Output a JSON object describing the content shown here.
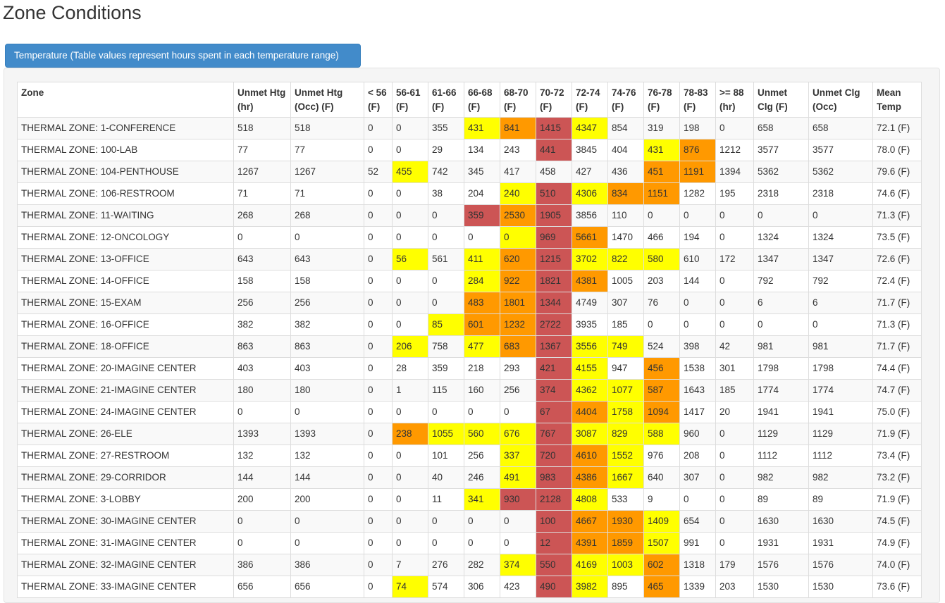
{
  "page_title": "Zone Conditions",
  "tab_label": "Temperature (Table values represent hours spent in each temperature range)",
  "colors": {
    "yellow": "#ffff00",
    "orange": "#ff9900",
    "red": "#cc5555",
    "accent": "#428bca"
  },
  "headers": [
    "Zone",
    "Unmet Htg (hr)",
    "Unmet Htg (Occ) (F)",
    "< 56 (F)",
    "56-61 (F)",
    "61-66 (F)",
    "66-68 (F)",
    "68-70 (F)",
    "70-72 (F)",
    "72-74 (F)",
    "74-76 (F)",
    "76-78 (F)",
    "78-83 (F)",
    ">= 88 (hr)",
    "Unmet Clg (F)",
    "Unmet Clg (Occ)",
    "Mean Temp"
  ],
  "rows": [
    {
      "cells": [
        "THERMAL ZONE: 1-CONFERENCE",
        "518",
        "518",
        "0",
        "0",
        "355",
        "431",
        "841",
        "1415",
        "4347",
        "854",
        "319",
        "198",
        "0",
        "658",
        "658",
        "72.1 (F)"
      ],
      "highlight": [
        "",
        "",
        "",
        "",
        "",
        "",
        "yellow",
        "orange",
        "red",
        "yellow",
        "",
        "",
        "",
        "",
        "",
        "",
        ""
      ]
    },
    {
      "cells": [
        "THERMAL ZONE: 100-LAB",
        "77",
        "77",
        "0",
        "0",
        "29",
        "134",
        "243",
        "441",
        "3845",
        "404",
        "431",
        "876",
        "1212",
        "3577",
        "3577",
        "78.0 (F)"
      ],
      "highlight": [
        "",
        "",
        "",
        "",
        "",
        "",
        "",
        "",
        "red",
        "",
        "",
        "yellow",
        "orange",
        "",
        "",
        "",
        ""
      ]
    },
    {
      "cells": [
        "THERMAL ZONE: 104-PENTHOUSE",
        "1267",
        "1267",
        "52",
        "455",
        "742",
        "345",
        "417",
        "458",
        "427",
        "436",
        "451",
        "1191",
        "1394",
        "5362",
        "5362",
        "79.6 (F)"
      ],
      "highlight": [
        "",
        "",
        "",
        "",
        "yellow",
        "",
        "",
        "",
        "",
        "",
        "",
        "orange",
        "orange",
        "",
        "",
        "",
        ""
      ]
    },
    {
      "cells": [
        "THERMAL ZONE: 106-RESTROOM",
        "71",
        "71",
        "0",
        "0",
        "38",
        "204",
        "240",
        "510",
        "4306",
        "834",
        "1151",
        "1282",
        "195",
        "2318",
        "2318",
        "74.6 (F)"
      ],
      "highlight": [
        "",
        "",
        "",
        "",
        "",
        "",
        "",
        "yellow",
        "red",
        "yellow",
        "orange",
        "orange",
        "",
        "",
        "",
        "",
        ""
      ]
    },
    {
      "cells": [
        "THERMAL ZONE: 11-WAITING",
        "268",
        "268",
        "0",
        "0",
        "0",
        "359",
        "2530",
        "1905",
        "3856",
        "110",
        "0",
        "0",
        "0",
        "0",
        "0",
        "71.3 (F)"
      ],
      "highlight": [
        "",
        "",
        "",
        "",
        "",
        "",
        "red",
        "orange",
        "red",
        "",
        "",
        "",
        "",
        "",
        "",
        "",
        ""
      ]
    },
    {
      "cells": [
        "THERMAL ZONE: 12-ONCOLOGY",
        "0",
        "0",
        "0",
        "0",
        "0",
        "0",
        "0",
        "969",
        "5661",
        "1470",
        "466",
        "194",
        "0",
        "1324",
        "1324",
        "73.5 (F)"
      ],
      "highlight": [
        "",
        "",
        "",
        "",
        "",
        "",
        "",
        "yellow",
        "red",
        "orange",
        "",
        "",
        "",
        "",
        "",
        "",
        ""
      ]
    },
    {
      "cells": [
        "THERMAL ZONE: 13-OFFICE",
        "643",
        "643",
        "0",
        "56",
        "561",
        "411",
        "620",
        "1215",
        "3702",
        "822",
        "580",
        "610",
        "172",
        "1347",
        "1347",
        "72.6 (F)"
      ],
      "highlight": [
        "",
        "",
        "",
        "",
        "yellow",
        "",
        "yellow",
        "orange",
        "red",
        "yellow",
        "yellow",
        "yellow",
        "",
        "",
        "",
        "",
        ""
      ]
    },
    {
      "cells": [
        "THERMAL ZONE: 14-OFFICE",
        "158",
        "158",
        "0",
        "0",
        "0",
        "284",
        "922",
        "1821",
        "4381",
        "1005",
        "203",
        "144",
        "0",
        "792",
        "792",
        "72.4 (F)"
      ],
      "highlight": [
        "",
        "",
        "",
        "",
        "",
        "",
        "yellow",
        "orange",
        "red",
        "orange",
        "",
        "",
        "",
        "",
        "",
        "",
        ""
      ]
    },
    {
      "cells": [
        "THERMAL ZONE: 15-EXAM",
        "256",
        "256",
        "0",
        "0",
        "0",
        "483",
        "1801",
        "1344",
        "4749",
        "307",
        "76",
        "0",
        "0",
        "6",
        "6",
        "71.7 (F)"
      ],
      "highlight": [
        "",
        "",
        "",
        "",
        "",
        "",
        "orange",
        "orange",
        "red",
        "",
        "",
        "",
        "",
        "",
        "",
        "",
        ""
      ]
    },
    {
      "cells": [
        "THERMAL ZONE: 16-OFFICE",
        "382",
        "382",
        "0",
        "0",
        "85",
        "601",
        "1232",
        "2722",
        "3935",
        "185",
        "0",
        "0",
        "0",
        "0",
        "0",
        "71.3 (F)"
      ],
      "highlight": [
        "",
        "",
        "",
        "",
        "",
        "yellow",
        "orange",
        "orange",
        "red",
        "",
        "",
        "",
        "",
        "",
        "",
        "",
        ""
      ]
    },
    {
      "cells": [
        "THERMAL ZONE: 18-OFFICE",
        "863",
        "863",
        "0",
        "206",
        "758",
        "477",
        "683",
        "1367",
        "3556",
        "749",
        "524",
        "398",
        "42",
        "981",
        "981",
        "71.7 (F)"
      ],
      "highlight": [
        "",
        "",
        "",
        "",
        "yellow",
        "",
        "yellow",
        "orange",
        "red",
        "yellow",
        "yellow",
        "",
        "",
        "",
        "",
        "",
        ""
      ]
    },
    {
      "cells": [
        "THERMAL ZONE: 20-IMAGINE CENTER",
        "403",
        "403",
        "0",
        "28",
        "359",
        "218",
        "293",
        "421",
        "4155",
        "947",
        "456",
        "1538",
        "301",
        "1798",
        "1798",
        "74.4 (F)"
      ],
      "highlight": [
        "",
        "",
        "",
        "",
        "",
        "",
        "",
        "",
        "red",
        "yellow",
        "",
        "orange",
        "",
        "",
        "",
        "",
        ""
      ]
    },
    {
      "cells": [
        "THERMAL ZONE: 21-IMAGINE CENTER",
        "180",
        "180",
        "0",
        "1",
        "115",
        "160",
        "256",
        "374",
        "4362",
        "1077",
        "587",
        "1643",
        "185",
        "1774",
        "1774",
        "74.7 (F)"
      ],
      "highlight": [
        "",
        "",
        "",
        "",
        "",
        "",
        "",
        "",
        "red",
        "yellow",
        "yellow",
        "orange",
        "",
        "",
        "",
        "",
        ""
      ]
    },
    {
      "cells": [
        "THERMAL ZONE: 24-IMAGINE CENTER",
        "0",
        "0",
        "0",
        "0",
        "0",
        "0",
        "0",
        "67",
        "4404",
        "1758",
        "1094",
        "1417",
        "20",
        "1941",
        "1941",
        "75.0 (F)"
      ],
      "highlight": [
        "",
        "",
        "",
        "",
        "",
        "",
        "",
        "",
        "red",
        "orange",
        "yellow",
        "orange",
        "",
        "",
        "",
        "",
        ""
      ]
    },
    {
      "cells": [
        "THERMAL ZONE: 26-ELE",
        "1393",
        "1393",
        "0",
        "238",
        "1055",
        "560",
        "676",
        "767",
        "3087",
        "829",
        "588",
        "960",
        "0",
        "1129",
        "1129",
        "71.9 (F)"
      ],
      "highlight": [
        "",
        "",
        "",
        "",
        "orange",
        "yellow",
        "yellow",
        "yellow",
        "red",
        "yellow",
        "yellow",
        "yellow",
        "",
        "",
        "",
        "",
        ""
      ]
    },
    {
      "cells": [
        "THERMAL ZONE: 27-RESTROOM",
        "132",
        "132",
        "0",
        "0",
        "101",
        "256",
        "337",
        "720",
        "4610",
        "1552",
        "976",
        "208",
        "0",
        "1112",
        "1112",
        "73.4 (F)"
      ],
      "highlight": [
        "",
        "",
        "",
        "",
        "",
        "",
        "",
        "yellow",
        "red",
        "orange",
        "yellow",
        "",
        "",
        "",
        "",
        "",
        ""
      ]
    },
    {
      "cells": [
        "THERMAL ZONE: 29-CORRIDOR",
        "144",
        "144",
        "0",
        "0",
        "40",
        "246",
        "491",
        "983",
        "4386",
        "1667",
        "640",
        "307",
        "0",
        "982",
        "982",
        "73.2 (F)"
      ],
      "highlight": [
        "",
        "",
        "",
        "",
        "",
        "",
        "",
        "yellow",
        "red",
        "orange",
        "yellow",
        "",
        "",
        "",
        "",
        "",
        ""
      ]
    },
    {
      "cells": [
        "THERMAL ZONE: 3-LOBBY",
        "200",
        "200",
        "0",
        "0",
        "11",
        "341",
        "930",
        "2128",
        "4808",
        "533",
        "9",
        "0",
        "0",
        "89",
        "89",
        "71.9 (F)"
      ],
      "highlight": [
        "",
        "",
        "",
        "",
        "",
        "",
        "yellow",
        "red",
        "red",
        "yellow",
        "",
        "",
        "",
        "",
        "",
        "",
        ""
      ]
    },
    {
      "cells": [
        "THERMAL ZONE: 30-IMAGINE CENTER",
        "0",
        "0",
        "0",
        "0",
        "0",
        "0",
        "0",
        "100",
        "4667",
        "1930",
        "1409",
        "654",
        "0",
        "1630",
        "1630",
        "74.5 (F)"
      ],
      "highlight": [
        "",
        "",
        "",
        "",
        "",
        "",
        "",
        "",
        "red",
        "orange",
        "orange",
        "yellow",
        "",
        "",
        "",
        "",
        ""
      ]
    },
    {
      "cells": [
        "THERMAL ZONE: 31-IMAGINE CENTER",
        "0",
        "0",
        "0",
        "0",
        "0",
        "0",
        "0",
        "12",
        "4391",
        "1859",
        "1507",
        "991",
        "0",
        "1931",
        "1931",
        "74.9 (F)"
      ],
      "highlight": [
        "",
        "",
        "",
        "",
        "",
        "",
        "",
        "",
        "red",
        "orange",
        "orange",
        "yellow",
        "",
        "",
        "",
        "",
        ""
      ]
    },
    {
      "cells": [
        "THERMAL ZONE: 32-IMAGINE CENTER",
        "386",
        "386",
        "0",
        "7",
        "276",
        "282",
        "374",
        "550",
        "4169",
        "1003",
        "602",
        "1318",
        "179",
        "1576",
        "1576",
        "74.0 (F)"
      ],
      "highlight": [
        "",
        "",
        "",
        "",
        "",
        "",
        "",
        "yellow",
        "red",
        "yellow",
        "yellow",
        "orange",
        "",
        "",
        "",
        "",
        ""
      ]
    },
    {
      "cells": [
        "THERMAL ZONE: 33-IMAGINE CENTER",
        "656",
        "656",
        "0",
        "74",
        "574",
        "306",
        "423",
        "490",
        "3982",
        "895",
        "465",
        "1339",
        "203",
        "1530",
        "1530",
        "73.6 (F)"
      ],
      "highlight": [
        "",
        "",
        "",
        "",
        "yellow",
        "",
        "",
        "",
        "red",
        "yellow",
        "",
        "orange",
        "",
        "",
        "",
        "",
        ""
      ]
    }
  ]
}
